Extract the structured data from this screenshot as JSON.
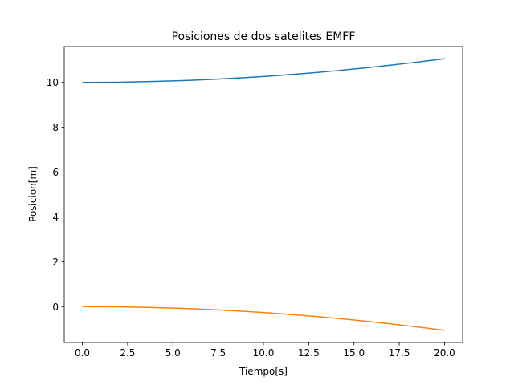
{
  "chart_data": {
    "type": "line",
    "title": "Posiciones de dos satelites EMFF",
    "xlabel": "Tiempo[s]",
    "ylabel": "Posicion[m]",
    "xlim": [
      -1.0,
      21.0
    ],
    "ylim": [
      -1.6,
      11.6
    ],
    "xticks": [
      0.0,
      2.5,
      5.0,
      7.5,
      10.0,
      12.5,
      15.0,
      17.5,
      20.0
    ],
    "xtick_labels": [
      "0.0",
      "2.5",
      "5.0",
      "7.5",
      "10.0",
      "12.5",
      "15.0",
      "17.5",
      "20.0"
    ],
    "yticks": [
      0,
      2,
      4,
      6,
      8,
      10
    ],
    "ytick_labels": [
      "0",
      "2",
      "4",
      "6",
      "8",
      "10"
    ],
    "grid": false,
    "series": [
      {
        "color": "#1f77b4",
        "x": [
          0,
          1,
          2,
          3,
          4,
          5,
          6,
          7,
          8,
          9,
          10,
          11,
          12,
          13,
          14,
          15,
          16,
          17,
          18,
          19,
          20
        ],
        "y": [
          10.0,
          10.003,
          10.01,
          10.024,
          10.042,
          10.066,
          10.095,
          10.13,
          10.17,
          10.215,
          10.265,
          10.321,
          10.382,
          10.448,
          10.52,
          10.597,
          10.68,
          10.767,
          10.86,
          10.958,
          11.06
        ]
      },
      {
        "color": "#ff7f0e",
        "x": [
          0,
          1,
          2,
          3,
          4,
          5,
          6,
          7,
          8,
          9,
          10,
          11,
          12,
          13,
          14,
          15,
          16,
          17,
          18,
          19,
          20
        ],
        "y": [
          0.0,
          -0.003,
          -0.01,
          -0.024,
          -0.042,
          -0.066,
          -0.095,
          -0.13,
          -0.17,
          -0.215,
          -0.265,
          -0.321,
          -0.382,
          -0.448,
          -0.52,
          -0.597,
          -0.68,
          -0.767,
          -0.86,
          -0.958,
          -1.06
        ]
      }
    ]
  }
}
